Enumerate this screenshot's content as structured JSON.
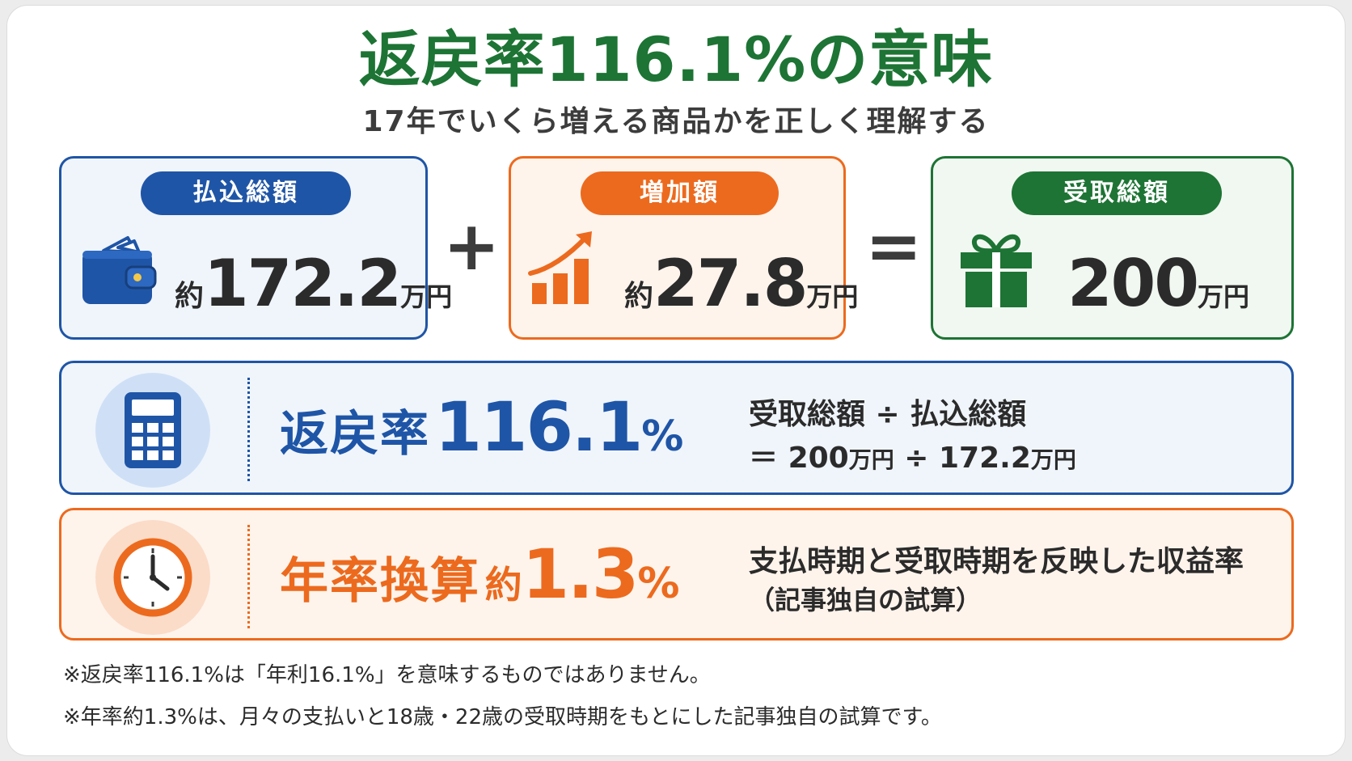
{
  "title": "返戻率116.1%の意味",
  "subtitle": "17年でいくら増える商品かを正しく理解する",
  "cards": {
    "paid": {
      "label": "払込総額",
      "prefix": "約",
      "value": "172.2",
      "unit": "万円",
      "icon": "wallet-icon",
      "color": "#1f55a6"
    },
    "gain": {
      "label": "増加額",
      "prefix": "約",
      "value": "27.8",
      "unit": "万円",
      "icon": "growth-chart-icon",
      "color": "#ec6a1e"
    },
    "received": {
      "label": "受取総額",
      "value": "200",
      "unit": "万円",
      "icon": "gift-icon",
      "color": "#1d7434"
    }
  },
  "operators": {
    "plus": "+",
    "equals": "="
  },
  "rate": {
    "label": "返戻率",
    "value": "116.1",
    "percent": "%",
    "formula_line1": "受取総額 ÷ 払込総額",
    "formula_eq": "＝",
    "formula_num1": "200",
    "formula_div": "÷",
    "formula_num2": "172.2",
    "formula_unit": "万円",
    "icon": "calculator-icon"
  },
  "annual": {
    "label": "年率換算",
    "prefix": "約",
    "value": "1.3",
    "percent": "%",
    "desc_line1": "支払時期と受取時期を反映した収益率",
    "desc_line2": "（記事独自の試算）",
    "icon": "clock-icon"
  },
  "notes": [
    "※返戻率116.1%は「年利16.1%」を意味するものではありません。",
    "※年率約1.3%は、月々の支払いと18歳・22歳の受取時期をもとにした記事独自の試算です。"
  ]
}
